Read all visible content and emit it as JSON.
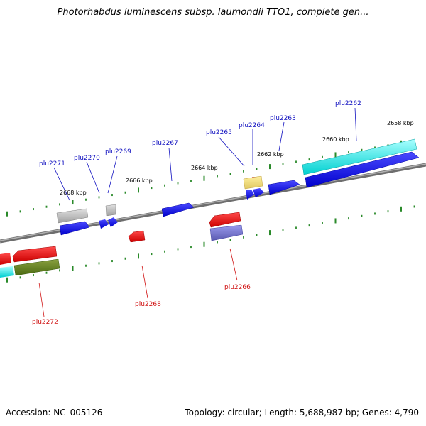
{
  "title": "Photorhabdus luminescens subsp. laumondii TTO1, complete gen...",
  "footer": {
    "accession": "Accession: NC_005126",
    "summary": "Topology: circular; Length: 5,688,987 bp; Genes: 4,790"
  },
  "scale_labels": [
    "2658 kbp",
    "2660 kbp",
    "2662 kbp",
    "2664 kbp",
    "2666 kbp",
    "2668 kbp"
  ],
  "gene_labels": {
    "plu2262": "plu2262",
    "plu2263": "plu2263",
    "plu2264": "plu2264",
    "plu2265": "plu2265",
    "plu2266": "plu2266",
    "plu2267": "plu2267",
    "plu2268": "plu2268",
    "plu2269": "plu2269",
    "plu2270": "plu2270",
    "plu2271": "plu2271",
    "plu2272": "plu2272"
  },
  "colors": {
    "forward_label": "#1010c0",
    "reverse_label": "#d01010",
    "tick": "#2a8a2a",
    "backbone": "#808080"
  }
}
